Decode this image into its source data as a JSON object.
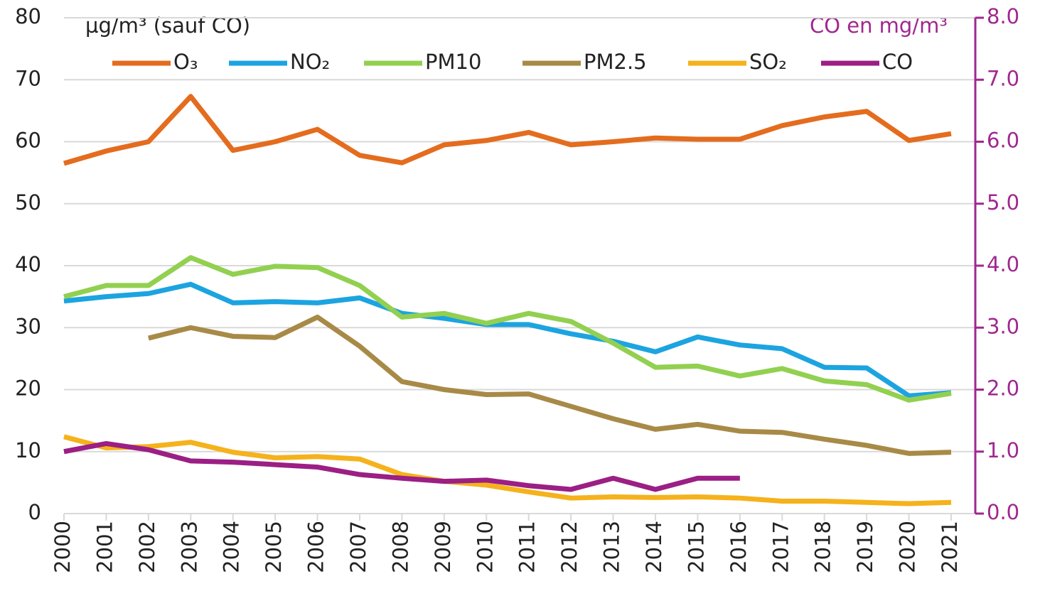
{
  "chart_data": {
    "type": "line",
    "y_label": "µg/m³ (sauf CO)",
    "y2_label": "CO en mg/m³",
    "categories": [
      "2000",
      "2001",
      "2002",
      "2003",
      "2004",
      "2005",
      "2006",
      "2007",
      "2008",
      "2009",
      "2010",
      "2011",
      "2012",
      "2013",
      "2014",
      "2015",
      "2016",
      "2017",
      "2018",
      "2019",
      "2020",
      "2021"
    ],
    "ylim": [
      0,
      80
    ],
    "yticks": [
      0,
      10,
      20,
      30,
      40,
      50,
      60,
      70,
      80
    ],
    "y2lim": [
      0,
      8
    ],
    "y2ticks": [
      {
        "value": 0,
        "label": "0.0"
      },
      {
        "value": 1,
        "label": "1.0"
      },
      {
        "value": 2,
        "label": "2.0"
      },
      {
        "value": 3,
        "label": "3.0"
      },
      {
        "value": 4,
        "label": "4.0"
      },
      {
        "value": 5,
        "label": "5.0"
      },
      {
        "value": 6,
        "label": "6.0"
      },
      {
        "value": 7,
        "label": "7.0"
      },
      {
        "value": 8,
        "label": "8.0"
      }
    ],
    "y2color": "#a0278f",
    "grid": true,
    "series": [
      {
        "name": "O₃",
        "color": "#e46c1e",
        "values": [
          56.5,
          58.5,
          60,
          67.3,
          58.6,
          60,
          62,
          57.8,
          56.6,
          59.5,
          60.2,
          61.5,
          59.5,
          60,
          60.6,
          60.4,
          60.4,
          62.6,
          64,
          64.9,
          60.2,
          61.3
        ]
      },
      {
        "name": "NO₂",
        "color": "#1ca4e0",
        "values": [
          34.3,
          35,
          35.5,
          37,
          34,
          34.2,
          34,
          34.8,
          32.3,
          31.5,
          30.5,
          30.5,
          29,
          27.8,
          26.1,
          28.5,
          27.2,
          26.6,
          23.6,
          23.5,
          19,
          19.5
        ]
      },
      {
        "name": "PM10",
        "color": "#92d050",
        "values": [
          35,
          36.8,
          36.8,
          41.3,
          38.6,
          39.9,
          39.7,
          36.8,
          31.7,
          32.3,
          30.7,
          32.3,
          31,
          27.5,
          23.6,
          23.8,
          22.2,
          23.4,
          21.4,
          20.8,
          18.3,
          19.4
        ]
      },
      {
        "name": "PM2.5",
        "color": "#a88a47",
        "values": [
          null,
          null,
          28.3,
          30,
          28.6,
          28.4,
          31.7,
          27,
          21.3,
          20,
          19.2,
          19.3,
          17.3,
          15.3,
          13.6,
          14.4,
          13.3,
          13.1,
          12,
          11,
          9.7,
          9.9
        ]
      },
      {
        "name": "SO₂",
        "color": "#f5b21c",
        "values": [
          12.4,
          10.6,
          10.8,
          11.5,
          9.9,
          9,
          9.2,
          8.8,
          6.3,
          5.2,
          4.6,
          3.5,
          2.5,
          2.7,
          2.6,
          2.7,
          2.5,
          2,
          2,
          1.8,
          1.6,
          1.8
        ]
      },
      {
        "name": "CO",
        "color": "#9b1f84",
        "axis": "y2",
        "values": [
          1.0,
          1.13,
          1.03,
          0.85,
          0.83,
          0.79,
          0.75,
          0.63,
          0.57,
          0.52,
          0.54,
          0.45,
          0.39,
          0.57,
          0.39,
          0.57,
          0.57,
          null,
          null,
          null,
          null,
          null
        ]
      }
    ]
  }
}
